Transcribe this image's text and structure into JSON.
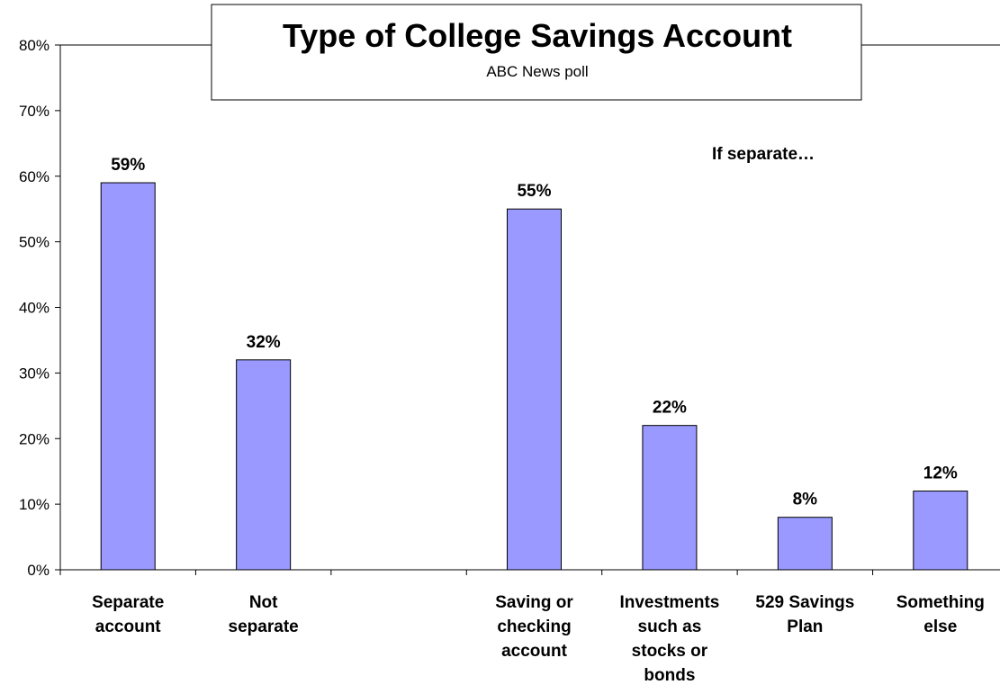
{
  "chart_data": {
    "type": "bar",
    "title": "Type of College Savings Account",
    "subtitle": "ABC News poll",
    "annotation": "If separate…",
    "categories": [
      [
        "Separate",
        "account"
      ],
      [
        "Not",
        "separate"
      ],
      [],
      [
        "Saving or",
        "checking",
        "account"
      ],
      [
        "Investments",
        "such as",
        "stocks or",
        "bonds"
      ],
      [
        "529 Savings",
        "Plan"
      ],
      [
        "Something",
        "else"
      ]
    ],
    "values": [
      59,
      32,
      null,
      55,
      22,
      8,
      12
    ],
    "data_labels": [
      "59%",
      "32%",
      "",
      "55%",
      "22%",
      "8%",
      "12%"
    ],
    "yticks": [
      "0%",
      "10%",
      "20%",
      "30%",
      "40%",
      "50%",
      "60%",
      "70%",
      "80%"
    ],
    "ylim": [
      0,
      80
    ],
    "xlabel": "",
    "ylabel": "",
    "grid": false,
    "bar_color": "#9999ff",
    "bar_edge_color": "#000000"
  }
}
